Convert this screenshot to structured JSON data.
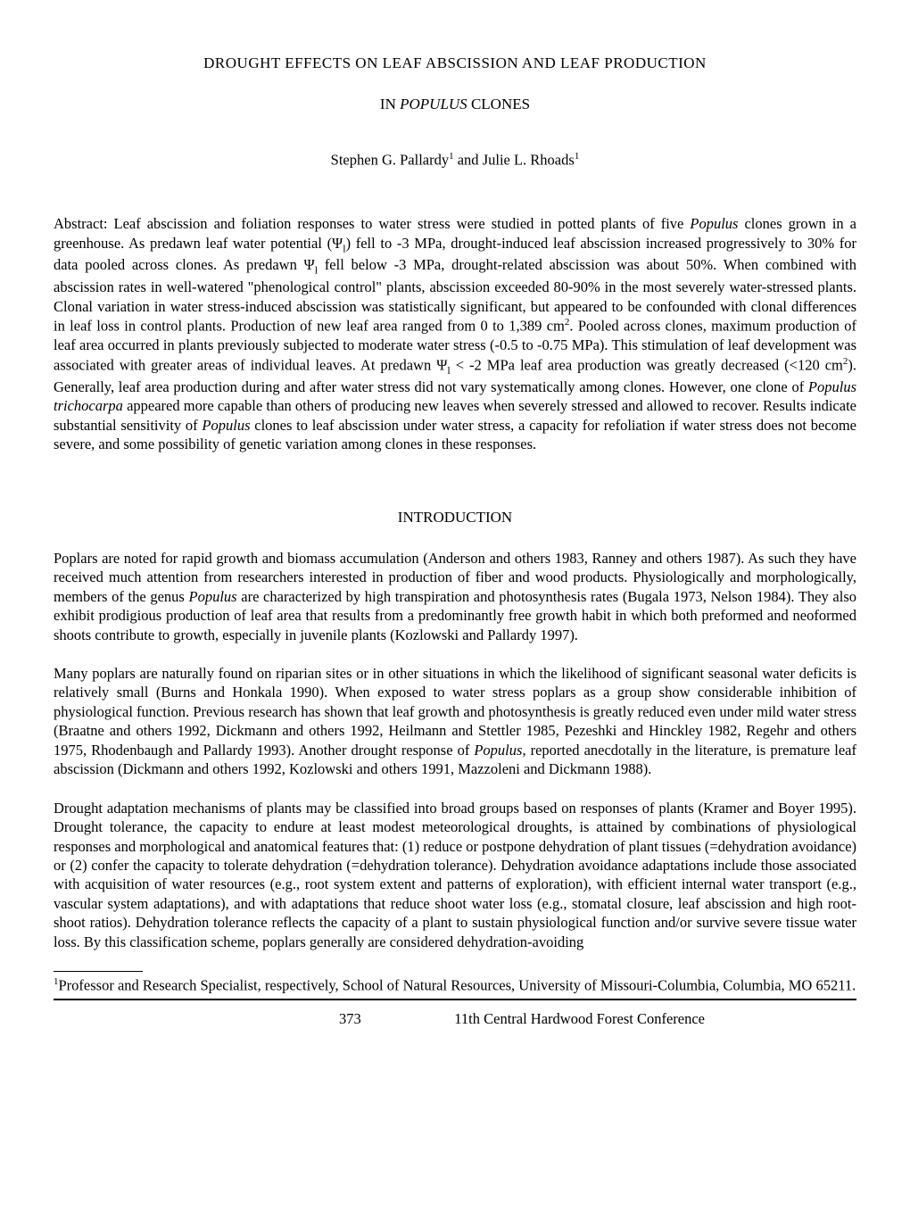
{
  "title": {
    "line1": "DROUGHT EFFECTS ON LEAF ABSCISSION AND LEAF PRODUCTION",
    "line2_pre": "IN ",
    "line2_italic": "POPULUS",
    "line2_post": " CLONES"
  },
  "authors": {
    "a1_name": "Stephen G. Pallardy",
    "a1_sup": "1",
    "join": " and ",
    "a2_name": "Julie L. Rhoads",
    "a2_sup": "1"
  },
  "abstract": {
    "label": "Abstract:  ",
    "seg1": "Leaf abscission and foliation responses to water stress were studied in potted plants of five ",
    "it1": "Populus",
    "seg2": " clones grown in a greenhouse. As predawn leaf water potential (Ψ",
    "sub1": "l",
    "seg3": ") fell to -3 MPa, drought-induced leaf abscission increased progressively to 30% for data pooled across clones. As predawn Ψ",
    "sub2": "l",
    "seg4": " fell below -3 MPa, drought-related abscission was about 50%. When combined with abscission rates in well-watered \"phenological control\" plants, abscission exceeded 80-90% in the most severely water-stressed plants. Clonal variation in water stress-induced abscission was statistically significant, but appeared to be confounded with clonal differences in leaf loss in control plants. Production of new leaf area ranged from 0 to 1,389 cm",
    "sup1": "2",
    "seg5": ". Pooled across clones, maximum production of leaf area occurred in plants previously subjected to moderate water stress (-0.5 to -0.75 MPa). This stimulation of leaf development was associated with greater areas of individual leaves. At predawn Ψ",
    "sub3": "l",
    "seg6": " < -2 MPa leaf area production was greatly decreased (<120 cm",
    "sup2": "2",
    "seg7": "). Generally, leaf area production during and after water stress did not vary systematically among clones. However, one clone of ",
    "it2": "Populus trichocarpa",
    "seg8": " appeared more capable than others of producing new leaves when severely stressed and allowed to recover. Results indicate substantial sensitivity of ",
    "it3": "Populus",
    "seg9": " clones to leaf abscission under water stress, a capacity for refoliation if water stress does not become severe, and some possibility of genetic variation among clones in these responses."
  },
  "introHeading": "INTRODUCTION",
  "p1": {
    "seg1": "Poplars are noted for rapid growth and biomass accumulation (Anderson and others 1983, Ranney and others 1987). As such they have received much attention from researchers interested in production of fiber and wood products. Physiologically and morphologically, members of the genus ",
    "it1": "Populus",
    "seg2": " are characterized by high transpiration and photosynthesis rates (Bugala 1973, Nelson 1984). They also exhibit prodigious production of leaf area that results from a predominantly free growth habit in which both preformed and neoformed shoots contribute to growth, especially in juvenile plants (Kozlowski and Pallardy 1997)."
  },
  "p2": {
    "seg1": "Many poplars are naturally found on riparian sites or in other situations in which the likelihood of significant seasonal water deficits is relatively small (Burns and Honkala 1990). When exposed to water stress poplars as a group show considerable inhibition of physiological function. Previous research has shown that leaf growth and photosynthesis is greatly reduced even under mild water stress (Braatne and others 1992, Dickmann and others 1992, Heilmann and Stettler 1985, Pezeshki and Hinckley 1982, Regehr and others 1975, Rhodenbaugh and Pallardy 1993). Another drought response of ",
    "it1": "Populus",
    "seg2": ", reported anecdotally in the literature, is premature leaf abscission (Dickmann and others 1992, Kozlowski and others 1991, Mazzoleni and Dickmann 1988)."
  },
  "p3": {
    "seg1": "Drought adaptation mechanisms of plants may be classified into broad groups based on responses of plants (Kramer and Boyer 1995). Drought tolerance, the capacity to endure at least modest meteorological droughts, is attained by combinations of physiological responses and morphological and anatomical features that: (1) reduce or postpone dehydration of plant tissues (=dehydration avoidance) or (2) confer the capacity to tolerate dehydration (=dehydration tolerance). Dehydration avoidance adaptations include those associated with acquisition of water resources (e.g., root system extent and patterns of exploration), with efficient internal water transport (e.g., vascular system adaptations), and with adaptations that reduce shoot water loss (e.g., stomatal closure, leaf abscission and high root-shoot ratios). Dehydration tolerance reflects the capacity of a plant to sustain physiological function and/or survive severe tissue water loss. By this classification scheme, poplars generally are considered dehydration-avoiding"
  },
  "footnote": {
    "sup": "1",
    "text": "Professor and Research Specialist, respectively, School of Natural Resources, University of Missouri-Columbia, Columbia, MO 65211."
  },
  "footer": {
    "page": "373",
    "conf": "11th Central Hardwood Forest Conference"
  }
}
